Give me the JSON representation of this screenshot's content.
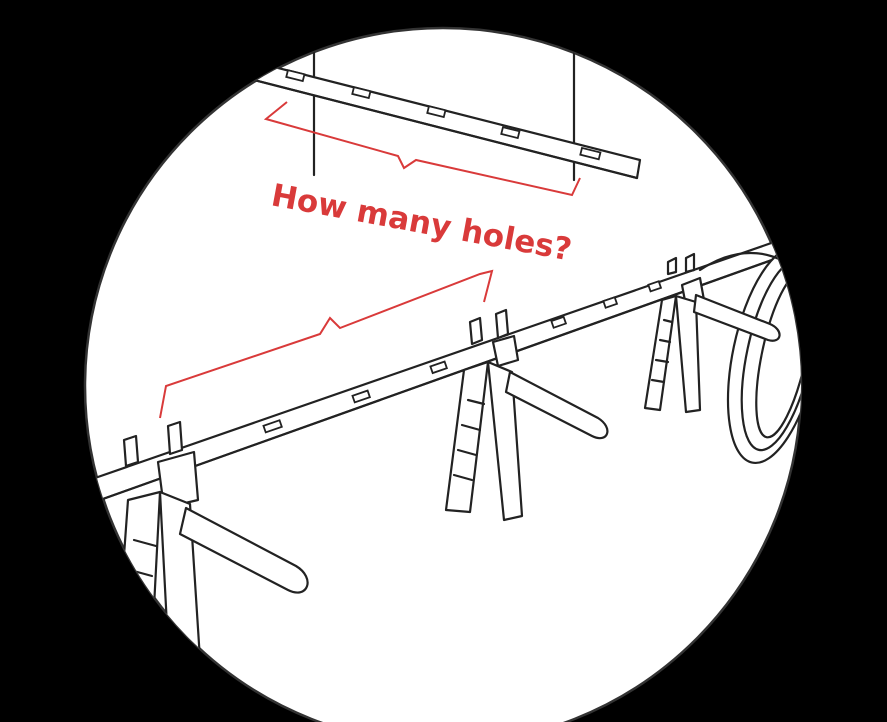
{
  "question_label": "How many holes?",
  "colors": {
    "background": "#000000",
    "circle_fill": "#ffffff",
    "line_ink": "#222222",
    "accent_red": "#d93a3a"
  }
}
